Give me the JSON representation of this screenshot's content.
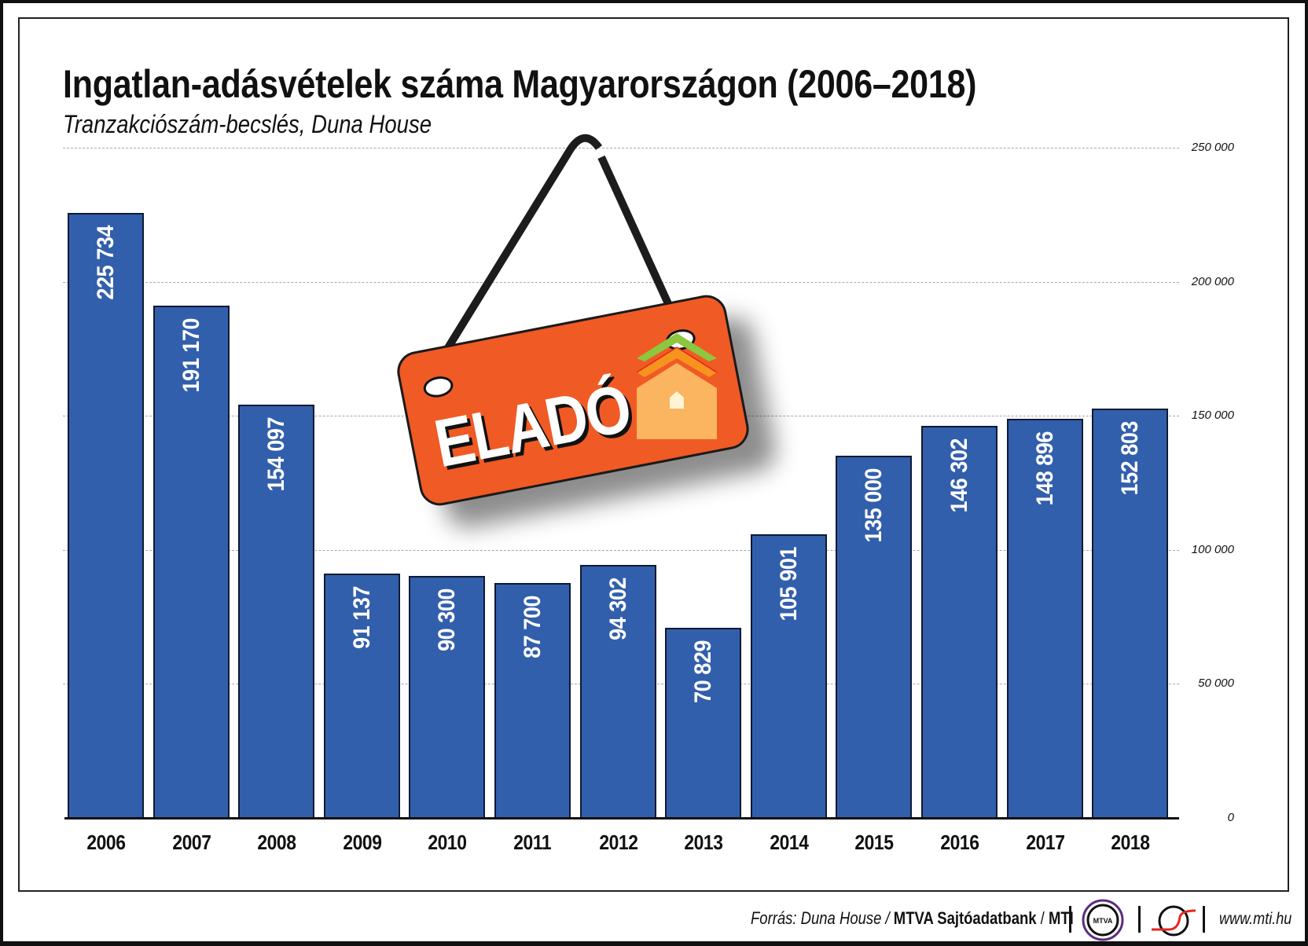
{
  "header": {
    "title": "Ingatlan-adásvételek száma Magyarországon (2006–2018)",
    "subtitle": "Tranzakciószám-becslés, Duna House"
  },
  "sign": {
    "text": "ELADÓ",
    "colors": {
      "sign": "#F05A24",
      "chevron_green": "#8DC63F",
      "chevron_orange": "#F7941D",
      "house": "#FBB45F",
      "window": "#FFF5D6"
    }
  },
  "y_axis": {
    "ticks": [
      "250 000",
      "200 000",
      "150 000",
      "100 000",
      "50 000",
      "0"
    ]
  },
  "bars": [
    {
      "year": "2006",
      "label": "225 734"
    },
    {
      "year": "2007",
      "label": "191 170"
    },
    {
      "year": "2008",
      "label": "154 097"
    },
    {
      "year": "2009",
      "label": "91 137"
    },
    {
      "year": "2010",
      "label": "90 300"
    },
    {
      "year": "2011",
      "label": "87 700"
    },
    {
      "year": "2012",
      "label": "94 302"
    },
    {
      "year": "2013",
      "label": "70 829"
    },
    {
      "year": "2014",
      "label": "105 901"
    },
    {
      "year": "2015",
      "label": "135 000"
    },
    {
      "year": "2016",
      "label": "146 302"
    },
    {
      "year": "2017",
      "label": "148 896"
    },
    {
      "year": "2018",
      "label": "152 803"
    }
  ],
  "footer": {
    "source_prefix": "Forrás: Duna House / ",
    "source_bold": "MTVA Sajtóadatbank",
    "source_sep": " / ",
    "source_end": "MTI",
    "mtva_logo_text": "MTVA",
    "url": "www.mti.hu"
  },
  "colors": {
    "bar": "#325FAC",
    "grid": "#A8A8A8"
  },
  "chart_data": {
    "type": "bar",
    "title": "Ingatlan-adásvételek száma Magyarországon (2006–2018)",
    "subtitle": "Tranzakciószám-becslés, Duna House",
    "categories": [
      "2006",
      "2007",
      "2008",
      "2009",
      "2010",
      "2011",
      "2012",
      "2013",
      "2014",
      "2015",
      "2016",
      "2017",
      "2018"
    ],
    "values": [
      225734,
      191170,
      154097,
      91137,
      90300,
      87700,
      94302,
      70829,
      105901,
      135000,
      146302,
      148896,
      152803
    ],
    "xlabel": "",
    "ylabel": "",
    "ylim": [
      0,
      250000
    ],
    "yticks": [
      0,
      50000,
      100000,
      150000,
      200000,
      250000
    ],
    "grid": true,
    "y_axis_position": "right",
    "legend": null,
    "annotations": [
      "ELADÓ"
    ],
    "source": "Forrás: Duna House / MTVA Sajtóadatbank / MTI"
  }
}
